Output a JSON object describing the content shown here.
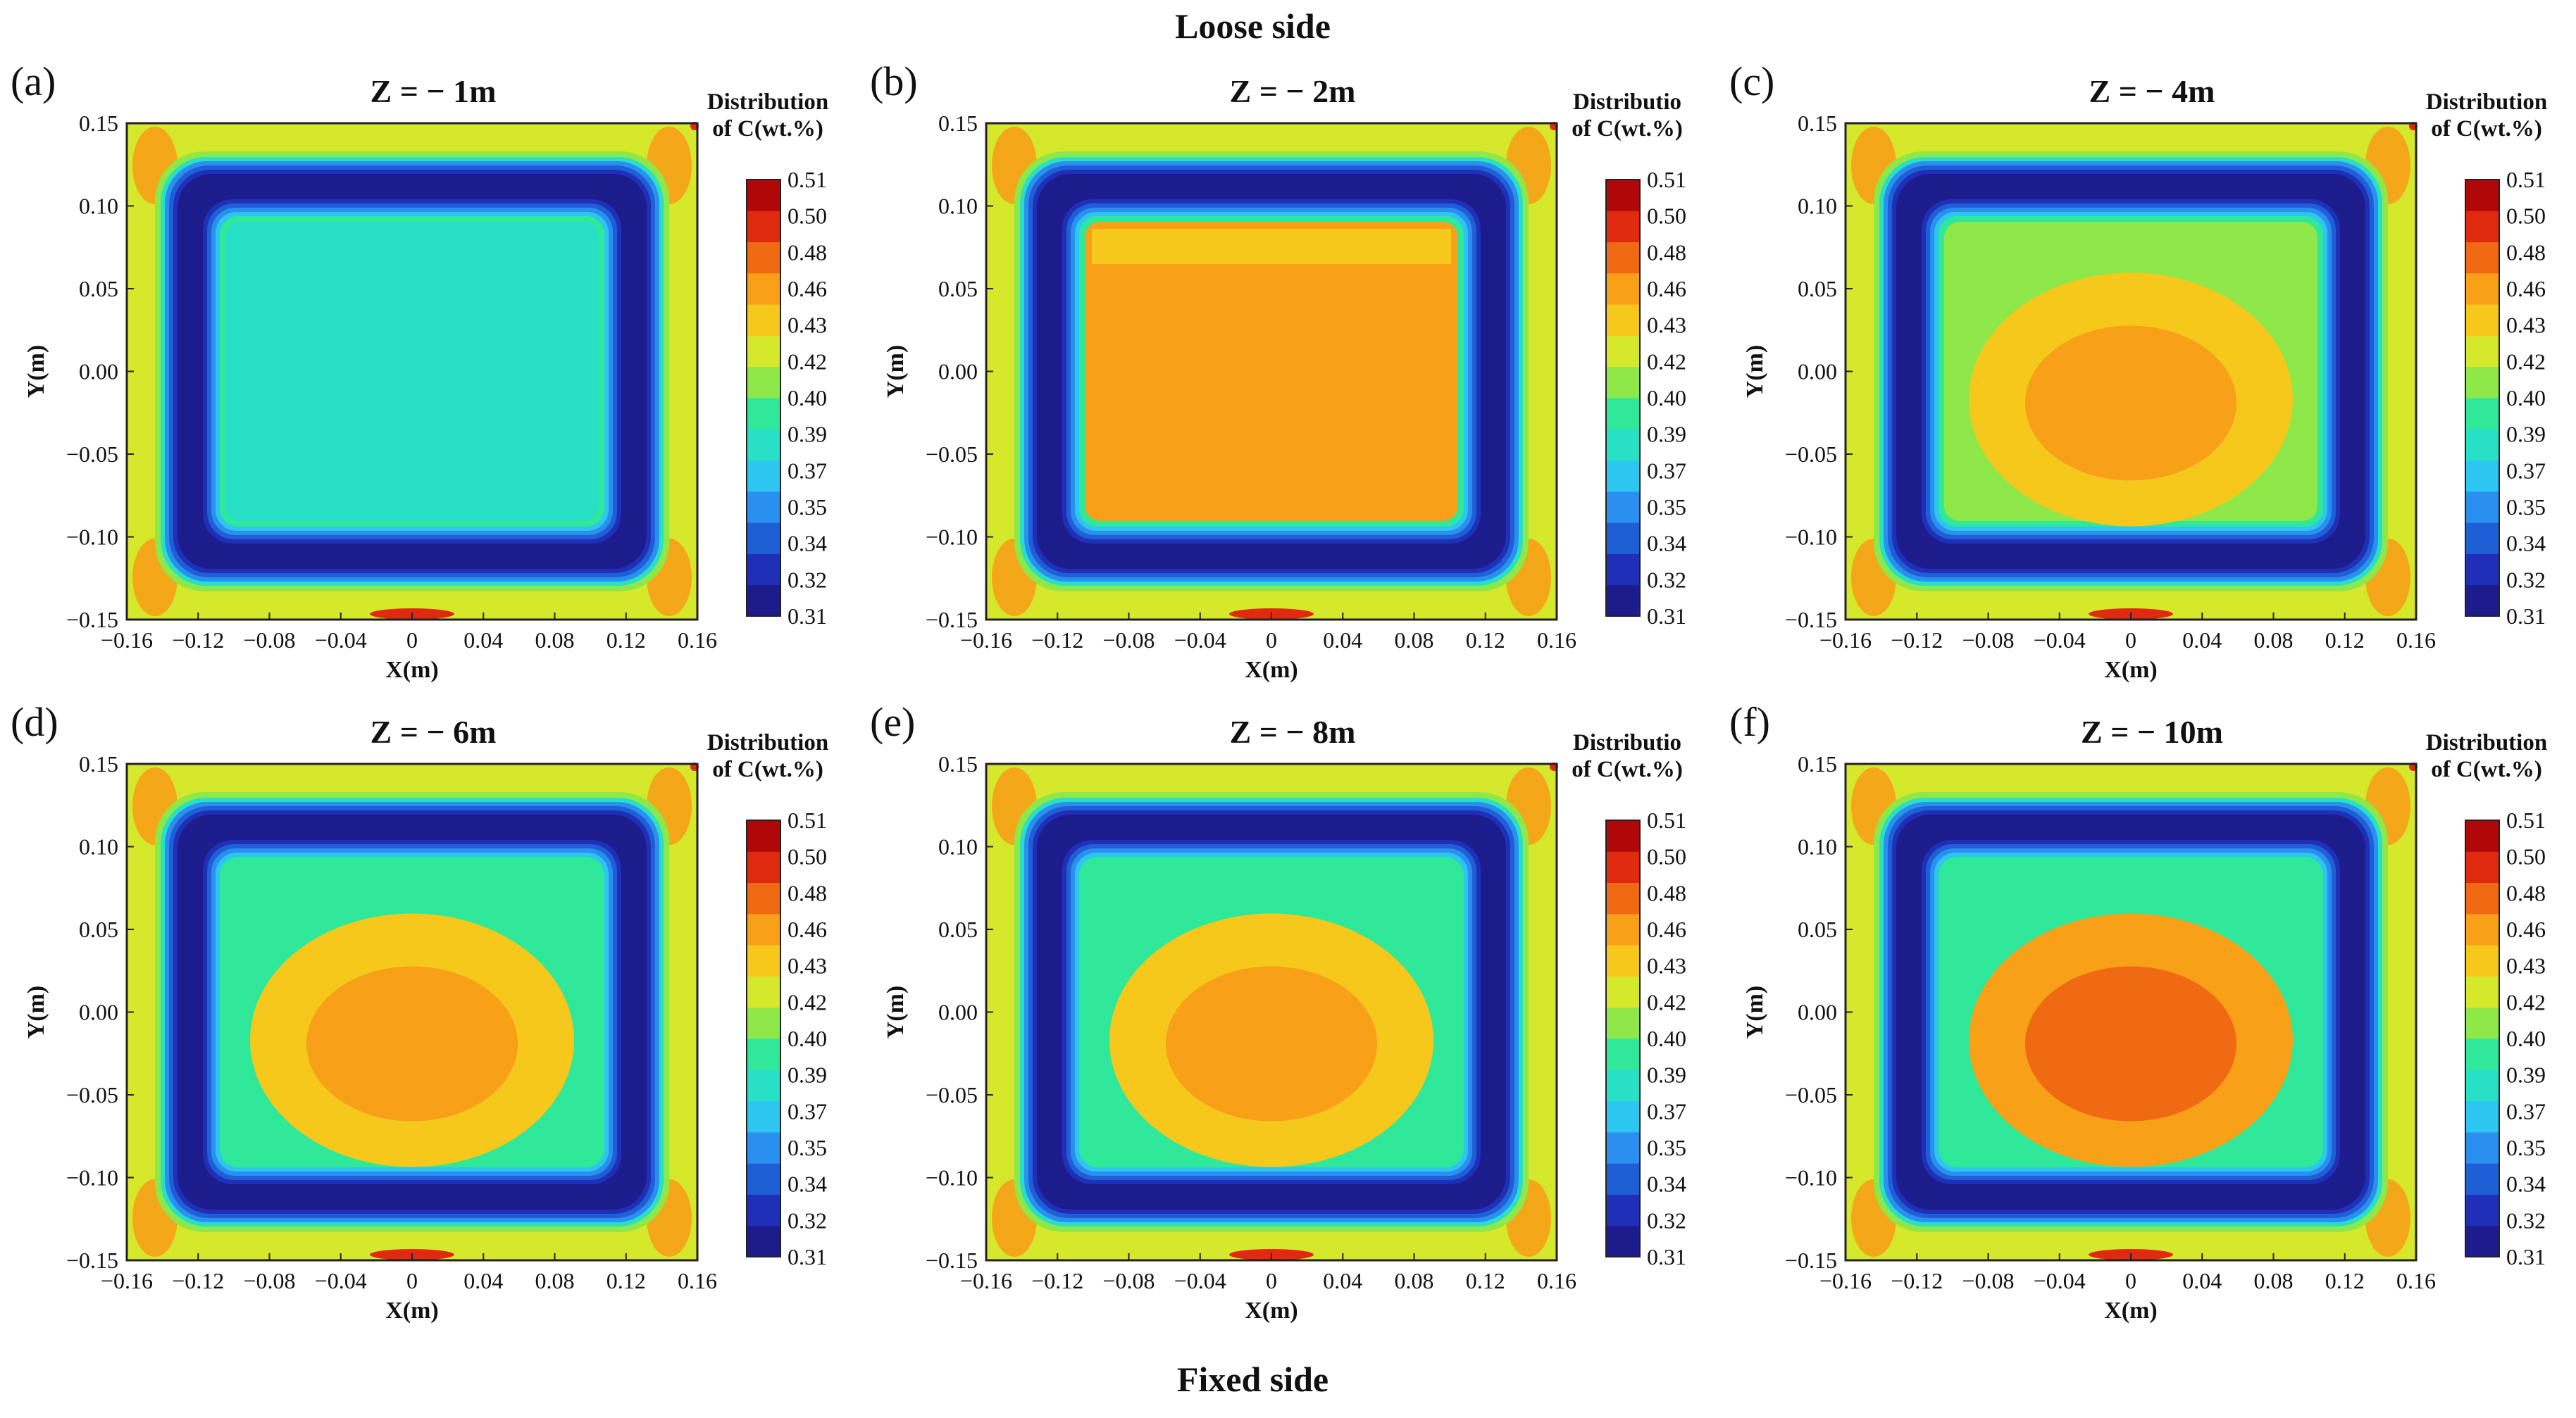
{
  "figure": {
    "top_label": "Loose side",
    "bottom_label": "Fixed side"
  },
  "colors": {
    "levels": [
      "#1c1c8c",
      "#1f2fb8",
      "#1f5fd6",
      "#2b8ff0",
      "#2cc6f0",
      "#28e0c6",
      "#30e89a",
      "#8ee84a",
      "#d6e82c",
      "#f6c81c",
      "#f8a018",
      "#f06a14",
      "#e02a10",
      "#b00808"
    ]
  },
  "chart_data": [
    {
      "type": "heatmap",
      "panel_label": "(a)",
      "title": "Z = − 1m",
      "xlabel": "X(m)",
      "ylabel": "Y(m)",
      "xlim": [
        -0.16,
        0.16
      ],
      "ylim": [
        -0.15,
        0.15
      ],
      "x_ticks": [
        "−0.16",
        "−0.12",
        "−0.08",
        "−0.04",
        "0",
        "0.04",
        "0.08",
        "0.12",
        "0.16"
      ],
      "y_ticks": [
        "0.15",
        "0.10",
        "0.05",
        "0.00",
        "−0.05",
        "−0.10",
        "−0.15"
      ],
      "colorbar_title": [
        "Distribution",
        "of C(wt.%)"
      ],
      "colorbar_ticks": [
        "0.51",
        "0.50",
        "0.48",
        "0.46",
        "0.43",
        "0.42",
        "0.40",
        "0.39",
        "0.37",
        "0.35",
        "0.34",
        "0.32",
        "0.31"
      ],
      "core_level": 5,
      "core_shape": "square",
      "center_level": null
    },
    {
      "type": "heatmap",
      "panel_label": "(b)",
      "title": "Z = − 2m",
      "xlabel": "X(m)",
      "ylabel": "Y(m)",
      "xlim": [
        -0.16,
        0.16
      ],
      "ylim": [
        -0.15,
        0.15
      ],
      "x_ticks": [
        "−0.16",
        "−0.12",
        "−0.08",
        "−0.04",
        "0",
        "0.04",
        "0.08",
        "0.12",
        "0.16"
      ],
      "y_ticks": [
        "0.15",
        "0.10",
        "0.05",
        "0.00",
        "−0.05",
        "−0.10",
        "−0.15"
      ],
      "colorbar_title": [
        "Distributio",
        "of C(wt.%)"
      ],
      "colorbar_ticks": [
        "0.51",
        "0.50",
        "0.48",
        "0.46",
        "0.43",
        "0.42",
        "0.40",
        "0.39",
        "0.37",
        "0.35",
        "0.34",
        "0.32",
        "0.31"
      ],
      "core_level": 10,
      "core_shape": "square",
      "center_level": null
    },
    {
      "type": "heatmap",
      "panel_label": "(c)",
      "title": "Z = − 4m",
      "xlabel": "X(m)",
      "ylabel": "Y(m)",
      "xlim": [
        -0.16,
        0.16
      ],
      "ylim": [
        -0.15,
        0.15
      ],
      "x_ticks": [
        "−0.16",
        "−0.12",
        "−0.08",
        "−0.04",
        "0",
        "0.04",
        "0.08",
        "0.12",
        "0.16"
      ],
      "y_ticks": [
        "0.15",
        "0.10",
        "0.05",
        "0.00",
        "−0.05",
        "−0.10",
        "−0.15"
      ],
      "colorbar_title": [
        "Distribution",
        "of C(wt.%)"
      ],
      "colorbar_ticks": [
        "0.51",
        "0.50",
        "0.48",
        "0.46",
        "0.43",
        "0.42",
        "0.40",
        "0.39",
        "0.37",
        "0.35",
        "0.34",
        "0.32",
        "0.31"
      ],
      "core_level": 7,
      "core_shape": "square",
      "center_level": 10
    },
    {
      "type": "heatmap",
      "panel_label": "(d)",
      "title": "Z = − 6m",
      "xlabel": "X(m)",
      "ylabel": "Y(m)",
      "xlim": [
        -0.16,
        0.16
      ],
      "ylim": [
        -0.15,
        0.15
      ],
      "x_ticks": [
        "−0.16",
        "−0.12",
        "−0.08",
        "−0.04",
        "0",
        "0.04",
        "0.08",
        "0.12",
        "0.16"
      ],
      "y_ticks": [
        "0.15",
        "0.10",
        "0.05",
        "0.00",
        "−0.05",
        "−0.10",
        "−0.15"
      ],
      "colorbar_title": [
        "Distribution",
        "of C(wt.%)"
      ],
      "colorbar_ticks": [
        "0.51",
        "0.50",
        "0.48",
        "0.46",
        "0.43",
        "0.42",
        "0.40",
        "0.39",
        "0.37",
        "0.35",
        "0.34",
        "0.32",
        "0.31"
      ],
      "core_level": 6,
      "core_shape": "square",
      "center_level": 10
    },
    {
      "type": "heatmap",
      "panel_label": "(e)",
      "title": "Z = − 8m",
      "xlabel": "X(m)",
      "ylabel": "Y(m)",
      "xlim": [
        -0.16,
        0.16
      ],
      "ylim": [
        -0.15,
        0.15
      ],
      "x_ticks": [
        "−0.16",
        "−0.12",
        "−0.08",
        "−0.04",
        "0",
        "0.04",
        "0.08",
        "0.12",
        "0.16"
      ],
      "y_ticks": [
        "0.15",
        "0.10",
        "0.05",
        "0.00",
        "−0.05",
        "−0.10",
        "−0.15"
      ],
      "colorbar_title": [
        "Distributio",
        "of C(wt.%)"
      ],
      "colorbar_ticks": [
        "0.51",
        "0.50",
        "0.48",
        "0.46",
        "0.43",
        "0.42",
        "0.40",
        "0.39",
        "0.37",
        "0.35",
        "0.34",
        "0.32",
        "0.31"
      ],
      "core_level": 6,
      "core_shape": "square",
      "center_level": 10
    },
    {
      "type": "heatmap",
      "panel_label": "(f)",
      "title": "Z = − 10m",
      "xlabel": "X(m)",
      "ylabel": "Y(m)",
      "xlim": [
        -0.16,
        0.16
      ],
      "ylim": [
        -0.15,
        0.15
      ],
      "x_ticks": [
        "−0.16",
        "−0.12",
        "−0.08",
        "−0.04",
        "0",
        "0.04",
        "0.08",
        "0.12",
        "0.16"
      ],
      "y_ticks": [
        "0.15",
        "0.10",
        "0.05",
        "0.00",
        "−0.05",
        "−0.10",
        "−0.15"
      ],
      "colorbar_title": [
        "Distribution",
        "of C(wt.%)"
      ],
      "colorbar_ticks": [
        "0.51",
        "0.50",
        "0.48",
        "0.46",
        "0.43",
        "0.42",
        "0.40",
        "0.39",
        "0.37",
        "0.35",
        "0.34",
        "0.32",
        "0.31"
      ],
      "core_level": 6,
      "core_shape": "square",
      "center_level": 11
    }
  ]
}
